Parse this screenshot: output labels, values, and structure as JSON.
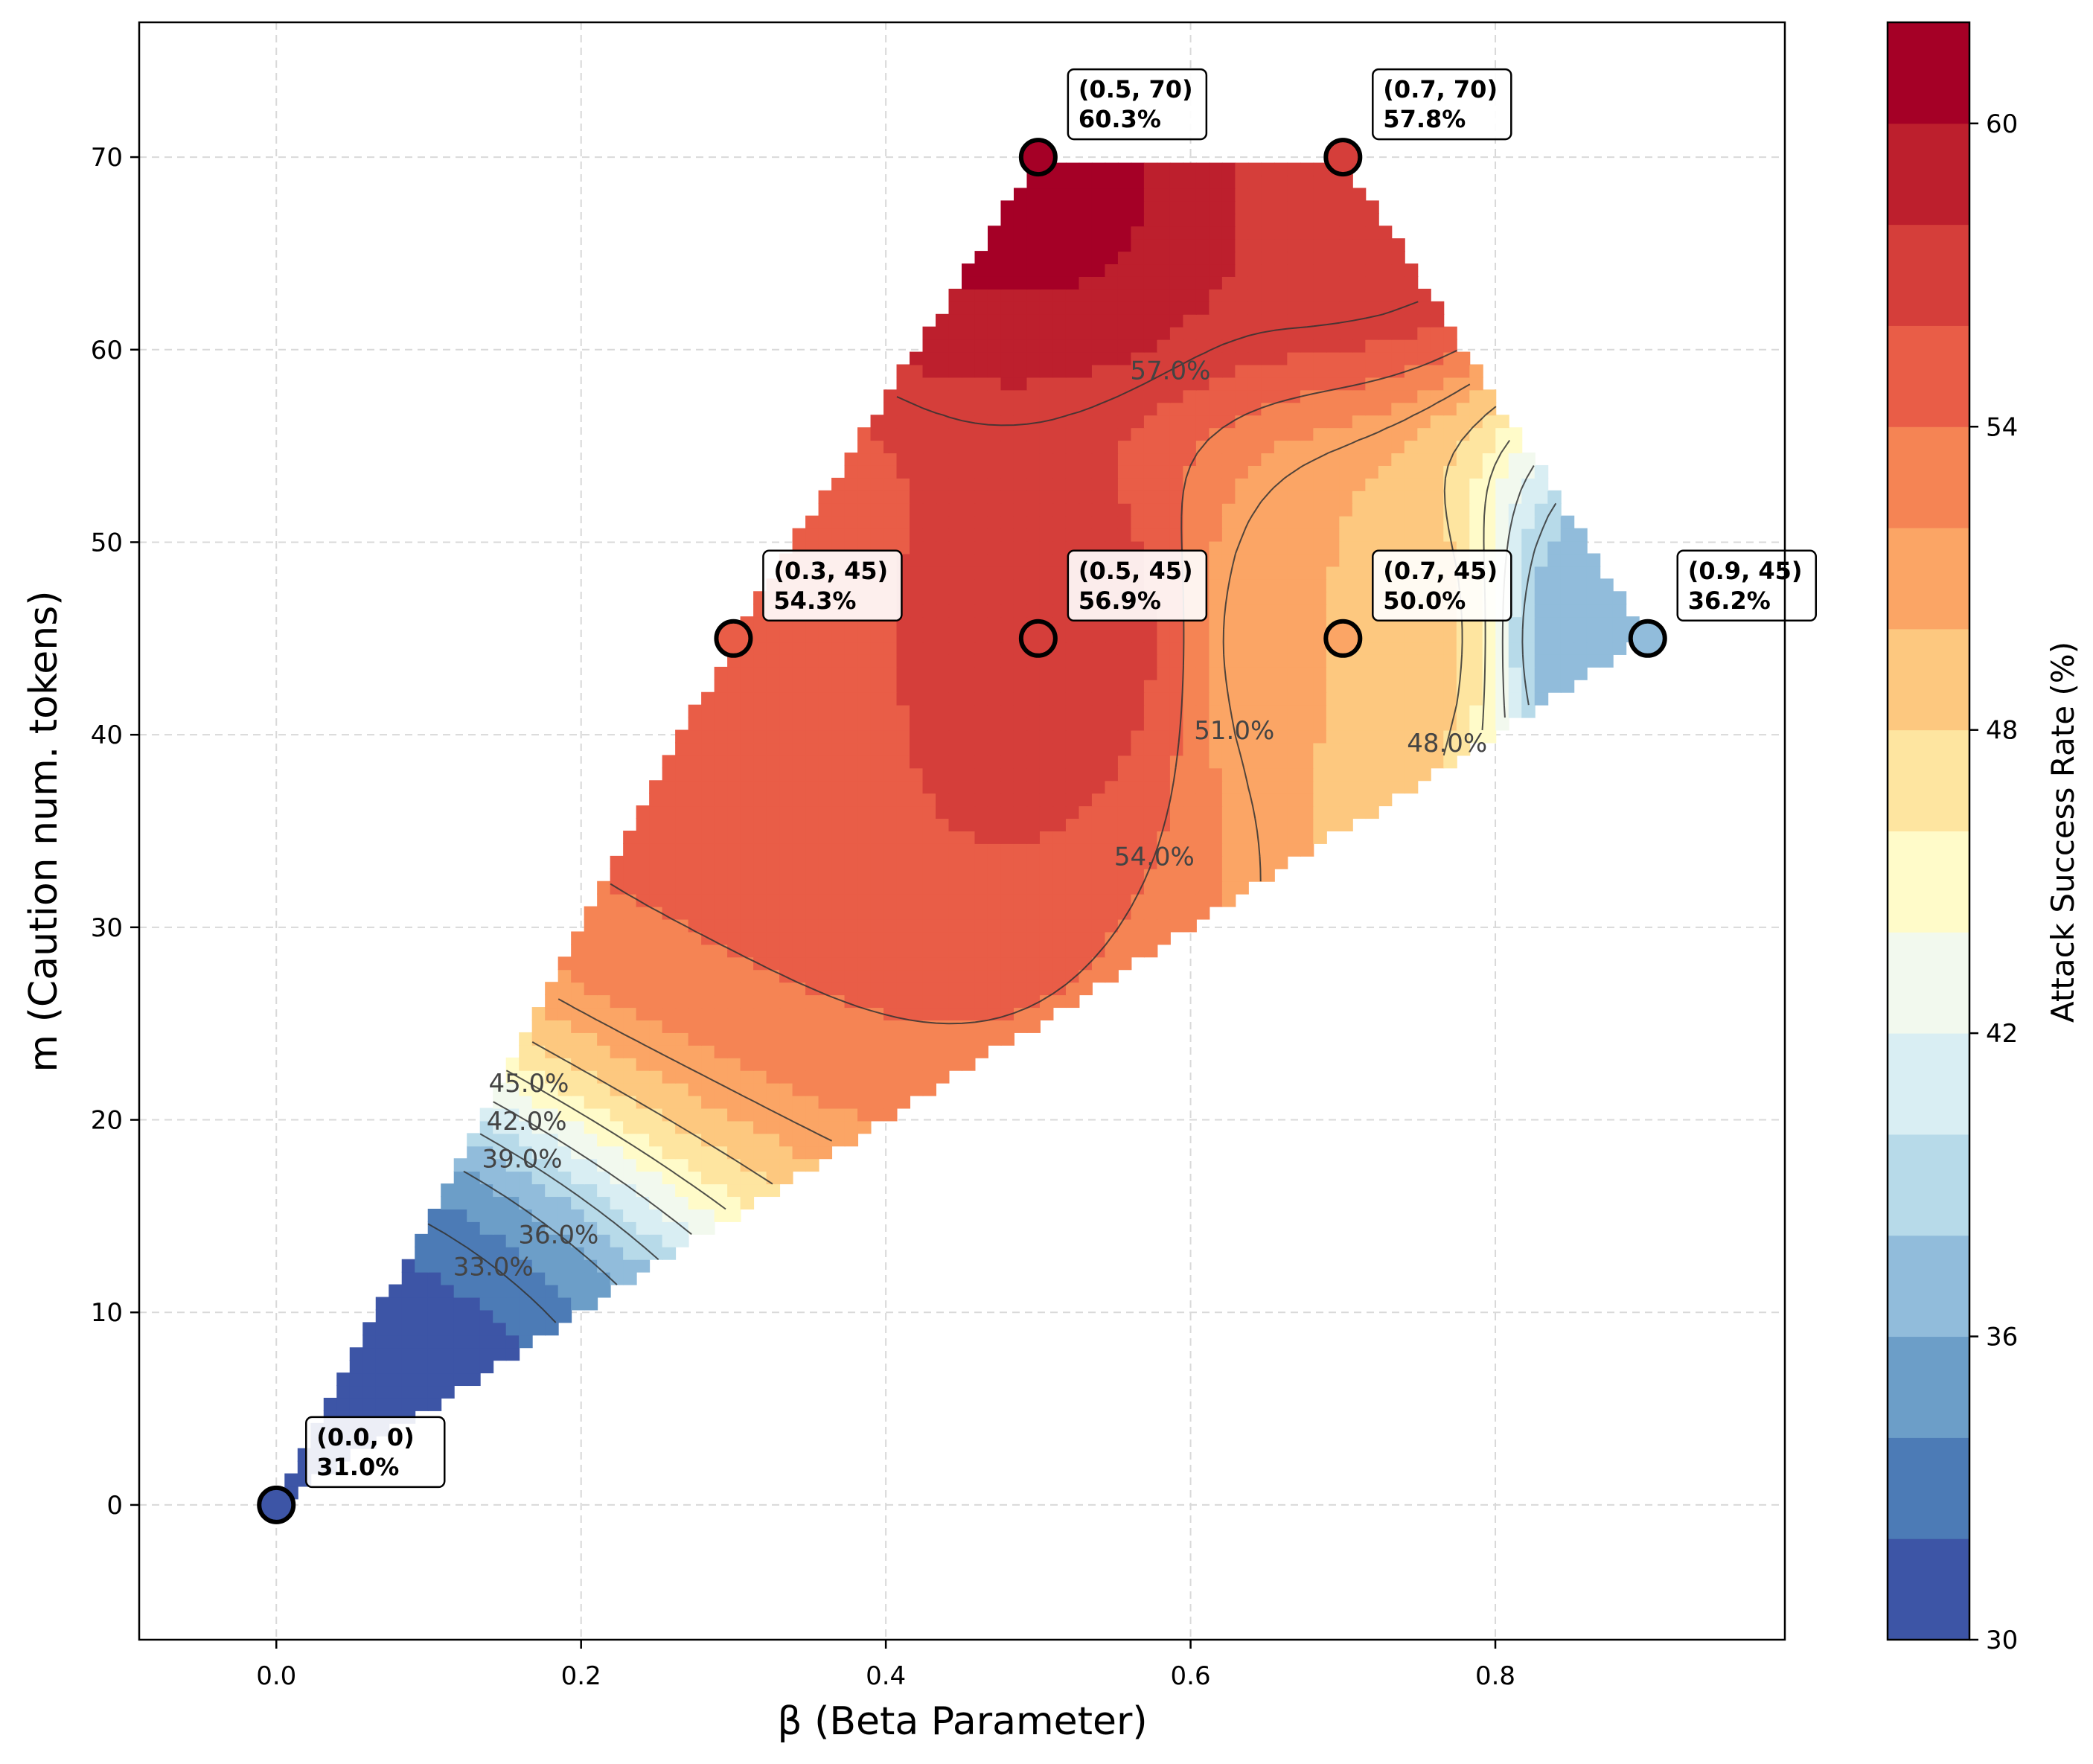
{
  "chart_data": {
    "type": "contour",
    "xlabel": "β (Beta Parameter)",
    "ylabel": "m (Caution num. tokens)",
    "colorbar_label": "Attack Success Rate (%)",
    "xlim": [
      -0.09,
      0.99
    ],
    "ylim": [
      -7,
      77
    ],
    "x_ticks": [
      0.0,
      0.2,
      0.4,
      0.6,
      0.8
    ],
    "x_tick_labels": [
      "0.0",
      "0.2",
      "0.4",
      "0.6",
      "0.8"
    ],
    "y_ticks": [
      0,
      10,
      20,
      30,
      40,
      50,
      60,
      70
    ],
    "y_tick_labels": [
      "0",
      "10",
      "20",
      "30",
      "40",
      "50",
      "60",
      "70"
    ],
    "grid": true,
    "colorbar": {
      "min": 30,
      "max": 62,
      "ticks": [
        30,
        36,
        42,
        48,
        54,
        60
      ],
      "tick_labels": [
        "30",
        "36",
        "42",
        "48",
        "54",
        "60"
      ],
      "levels": [
        30,
        32,
        34,
        36,
        38,
        40,
        42,
        44,
        46,
        48,
        50,
        52,
        54,
        56,
        58,
        60,
        62
      ],
      "colors": [
        "#3d55a6",
        "#4c7bb6",
        "#6c9ec8",
        "#91bcdb",
        "#b7dae9",
        "#d9eef3",
        "#f2f9ee",
        "#fffbc9",
        "#fee5a0",
        "#fdc87f",
        "#fba565",
        "#f58454",
        "#e95d47",
        "#d53e3a",
        "#bd1f2d",
        "#a50026"
      ]
    },
    "contour_lines": [
      {
        "level": 33,
        "label": "33.0%"
      },
      {
        "level": 36,
        "label": "36.0%"
      },
      {
        "level": 39,
        "label": "39.0%"
      },
      {
        "level": 42,
        "label": "42.0%"
      },
      {
        "level": 45,
        "label": "45.0%"
      },
      {
        "level": 48,
        "label": "48.0%"
      },
      {
        "level": 51,
        "label": "51.0%"
      },
      {
        "level": 54,
        "label": "54.0%"
      },
      {
        "level": 57,
        "label": "57.0%"
      }
    ],
    "points": [
      {
        "x": 0.0,
        "y": 0,
        "value": 31.0,
        "label": "(0.0, 0)",
        "value_label": "31.0%"
      },
      {
        "x": 0.3,
        "y": 45,
        "value": 54.3,
        "label": "(0.3, 45)",
        "value_label": "54.3%"
      },
      {
        "x": 0.5,
        "y": 45,
        "value": 56.9,
        "label": "(0.5, 45)",
        "value_label": "56.9%"
      },
      {
        "x": 0.5,
        "y": 70,
        "value": 60.3,
        "label": "(0.5, 70)",
        "value_label": "60.3%"
      },
      {
        "x": 0.7,
        "y": 45,
        "value": 50.0,
        "label": "(0.7, 45)",
        "value_label": "50.0%"
      },
      {
        "x": 0.7,
        "y": 70,
        "value": 57.8,
        "label": "(0.7, 70)",
        "value_label": "57.8%"
      },
      {
        "x": 0.9,
        "y": 45,
        "value": 36.2,
        "label": "(0.9, 45)",
        "value_label": "36.2%"
      }
    ]
  }
}
